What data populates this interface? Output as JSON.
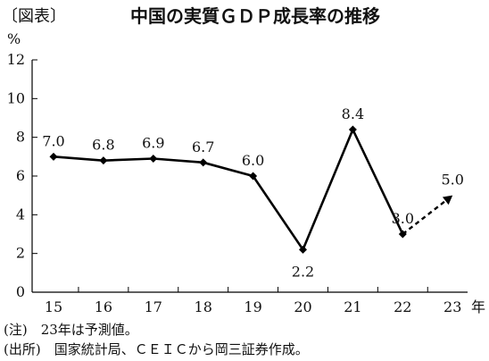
{
  "header": {
    "figure_tag": "〔図表〕",
    "title": "中国の実質ＧＤＰ成長率の推移"
  },
  "footer": {
    "note": "(注)　23年は予測値。",
    "source": "(出所)　国家統計局、ＣＥＩＣから岡三証券作成。"
  },
  "chart_data": {
    "type": "line",
    "title": "中国の実質ＧＤＰ成長率の推移",
    "xlabel": "年",
    "ylabel": "%",
    "categories": [
      "15",
      "16",
      "17",
      "18",
      "19",
      "20",
      "21",
      "22",
      "23"
    ],
    "ylim": [
      0,
      12
    ],
    "yticks": [
      0,
      2,
      4,
      6,
      8,
      10,
      12
    ],
    "series": [
      {
        "values": [
          7.0,
          6.8,
          6.9,
          6.7,
          6.0,
          2.2,
          8.4,
          3.0,
          5.0
        ],
        "labels": [
          "7.0",
          "6.8",
          "6.9",
          "6.7",
          "6.0",
          "2.2",
          "8.4",
          "3.0",
          "5.0"
        ],
        "forecast_from_index": 7,
        "forecast_style": "dashed-arrow",
        "color": "#000000"
      }
    ],
    "grid": false,
    "legend": "none"
  }
}
